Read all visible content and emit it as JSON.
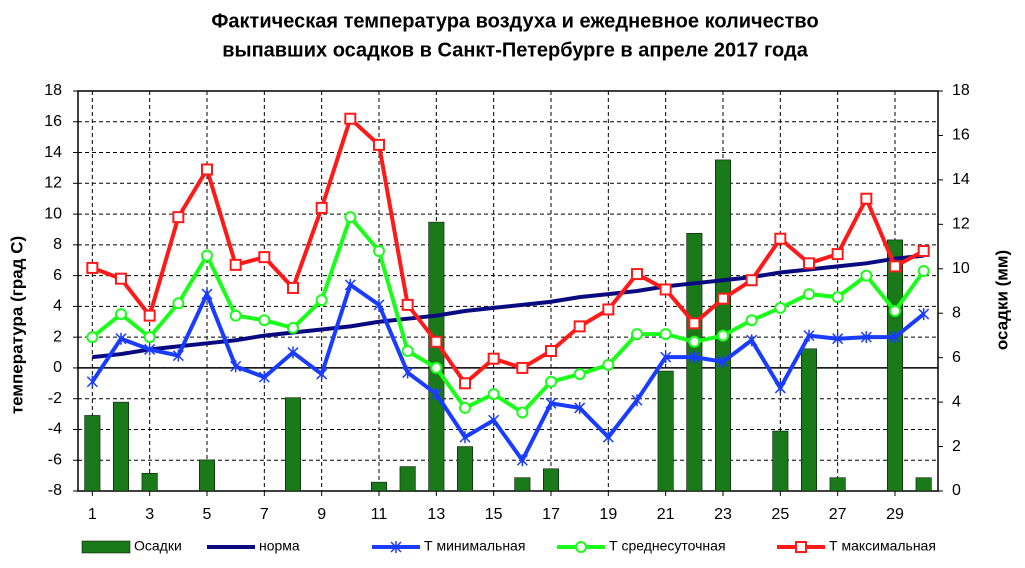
{
  "chart_data": {
    "type": "combo",
    "title": [
      "Фактическая температура воздуха и ежедневное количество",
      "выпавших осадков в Санкт-Петербурге  в апреле 2017 года"
    ],
    "ylabel": "температура (град С)",
    "y2label": "осадки (мм)",
    "x": [
      1,
      2,
      3,
      4,
      5,
      6,
      7,
      8,
      9,
      10,
      11,
      12,
      13,
      14,
      15,
      16,
      17,
      18,
      19,
      20,
      21,
      22,
      23,
      24,
      25,
      26,
      27,
      28,
      29,
      30
    ],
    "xlim": [
      0.5,
      30.5
    ],
    "xticks": [
      1,
      3,
      5,
      7,
      9,
      11,
      13,
      15,
      17,
      19,
      21,
      23,
      25,
      27,
      29
    ],
    "ylim": [
      -8,
      18
    ],
    "yticks": [
      -8,
      -6,
      -4,
      -2,
      0,
      2,
      4,
      6,
      8,
      10,
      12,
      14,
      16,
      18
    ],
    "y2lim": [
      0,
      18
    ],
    "y2ticks": [
      0,
      2,
      4,
      6,
      8,
      10,
      12,
      14,
      16,
      18
    ],
    "grid": true,
    "series": [
      {
        "name": "Осадки",
        "type": "bar",
        "axis": "y2",
        "color": "#1a7a1a",
        "values": [
          3.4,
          4.0,
          0.8,
          0,
          1.4,
          0,
          0,
          4.2,
          0,
          0,
          0.4,
          1.1,
          12.1,
          2.0,
          0,
          0.6,
          1.0,
          0,
          0,
          0,
          5.4,
          11.6,
          14.9,
          0,
          2.7,
          6.4,
          0.6,
          0,
          11.3,
          0.6
        ]
      },
      {
        "name": "норма",
        "type": "line",
        "marker": "none",
        "color": "#0a0a80",
        "values": [
          0.7,
          0.9,
          1.2,
          1.4,
          1.6,
          1.8,
          2.1,
          2.3,
          2.5,
          2.7,
          3.0,
          3.2,
          3.4,
          3.7,
          3.9,
          4.1,
          4.3,
          4.6,
          4.8,
          5.0,
          5.3,
          5.5,
          5.7,
          5.9,
          6.2,
          6.4,
          6.6,
          6.8,
          7.1,
          7.3
        ]
      },
      {
        "name": "Т минимальная",
        "type": "line",
        "marker": "star",
        "color": "#1a3cff",
        "values": [
          -0.9,
          1.9,
          1.2,
          0.8,
          4.8,
          0.1,
          -0.6,
          1.0,
          -0.4,
          5.4,
          4.1,
          -0.3,
          -1.7,
          -4.5,
          -3.4,
          -6.0,
          -2.3,
          -2.6,
          -4.5,
          -2.1,
          0.7,
          0.7,
          0.4,
          1.8,
          -1.3,
          2.1,
          1.9,
          2.0,
          2.0,
          3.5
        ]
      },
      {
        "name": "Т среднесуточная",
        "type": "line",
        "marker": "circle",
        "color": "#1aff1a",
        "values": [
          2.0,
          3.5,
          2.0,
          4.2,
          7.3,
          3.4,
          3.1,
          2.6,
          4.4,
          9.8,
          7.6,
          1.1,
          0.0,
          -2.6,
          -1.7,
          -2.9,
          -0.9,
          -0.4,
          0.2,
          2.2,
          2.2,
          1.7,
          2.1,
          3.1,
          3.9,
          4.8,
          4.6,
          6.0,
          3.7,
          6.3
        ]
      },
      {
        "name": "Т максимальная",
        "type": "line",
        "marker": "square",
        "color": "#ff1a1a",
        "values": [
          6.5,
          5.8,
          3.4,
          9.8,
          12.9,
          6.7,
          7.2,
          5.2,
          10.4,
          16.2,
          14.5,
          4.1,
          1.7,
          -1.0,
          0.6,
          0.0,
          1.1,
          2.7,
          3.8,
          6.1,
          5.1,
          2.9,
          4.5,
          5.7,
          8.4,
          6.8,
          7.4,
          11.0,
          6.6,
          7.6
        ]
      }
    ]
  }
}
